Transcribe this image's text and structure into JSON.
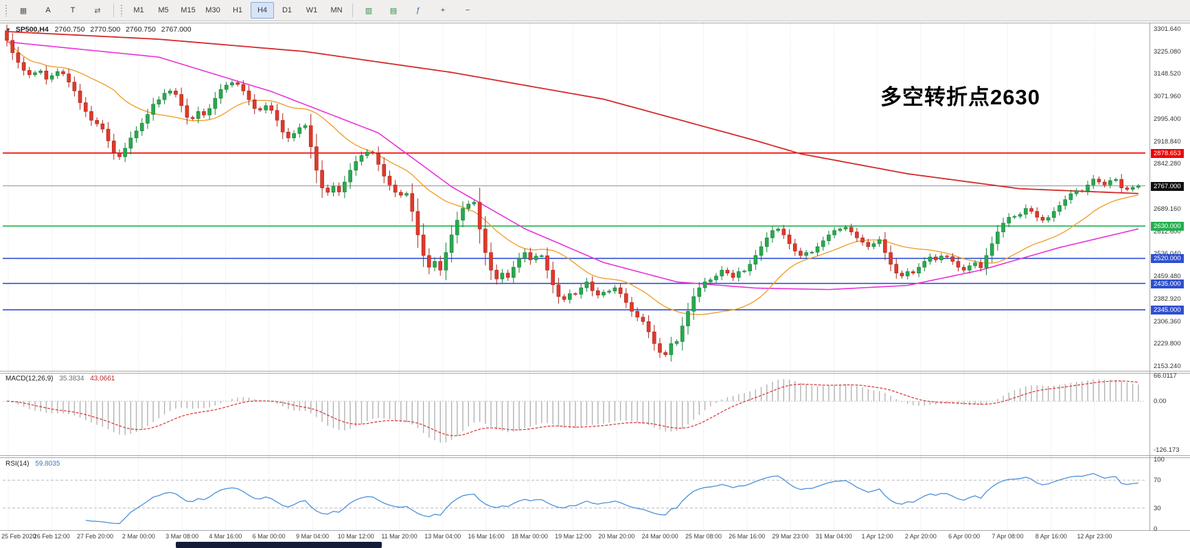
{
  "toolbar": {
    "left_icons": [
      {
        "name": "chart-window-icon",
        "glyph": "▦",
        "color": "#5a5a5a"
      },
      {
        "name": "text-label-icon",
        "glyph": "A",
        "color": "#2f2f2f"
      },
      {
        "name": "text-tool-icon",
        "glyph": "T",
        "color": "#2f2f2f"
      },
      {
        "name": "scroll-chart-icon",
        "glyph": "⇄",
        "color": "#5a5a5a"
      }
    ],
    "timeframes": [
      "M1",
      "M5",
      "M15",
      "M30",
      "H1",
      "H4",
      "D1",
      "W1",
      "MN"
    ],
    "active_timeframe": "H4",
    "right_icons": [
      {
        "name": "tile-windows-icon",
        "glyph": "▥",
        "color": "#2e8b44"
      },
      {
        "name": "cascade-windows-icon",
        "glyph": "▤",
        "color": "#2e8b44"
      },
      {
        "name": "indicators-icon",
        "glyph": "ƒ",
        "color": "#2a62b8"
      },
      {
        "name": "zoom-in-icon",
        "glyph": "+",
        "color": "#444444"
      },
      {
        "name": "zoom-out-icon",
        "glyph": "−",
        "color": "#444444"
      }
    ]
  },
  "chart_data": {
    "type": "candlestick",
    "symbol_title": {
      "dropdown_glyph": "▼",
      "symbol_period": "SP500,H4",
      "open": "2760.750",
      "high": "2770.500",
      "low": "2760.750",
      "close": "2767.000"
    },
    "annotation": {
      "text": "多空转折点2630",
      "color": "#ff0000"
    },
    "y_range": {
      "max": 3320,
      "min": 2142
    },
    "y_ticks": [
      "3301.640",
      "3225.080",
      "3148.520",
      "3071.960",
      "2995.400",
      "2918.840",
      "2842.280",
      "2765.720",
      "2689.160",
      "2612.600",
      "2536.040",
      "2459.480",
      "2382.920",
      "2306.360",
      "2229.800",
      "2153.240"
    ],
    "x_labels": [
      "25 Feb 2020",
      "26 Feb 12:00",
      "27 Feb 20:00",
      "2 Mar 00:00",
      "3 Mar 08:00",
      "4 Mar 16:00",
      "6 Mar 00:00",
      "9 Mar 04:00",
      "10 Mar 12:00",
      "11 Mar 20:00",
      "13 Mar 04:00",
      "16 Mar 16:00",
      "18 Mar 00:00",
      "19 Mar 12:00",
      "20 Mar 20:00",
      "24 Mar 00:00",
      "25 Mar 08:00",
      "26 Mar 16:00",
      "29 Mar 23:00",
      "31 Mar 04:00",
      "1 Apr 12:00",
      "2 Apr 20:00",
      "6 Apr 00:00",
      "7 Apr 08:00",
      "8 Apr 16:00",
      "12 Apr 23:00"
    ],
    "open_seed": 3295,
    "closes": [
      3262,
      3220,
      3187,
      3160,
      3145,
      3152,
      3158,
      3130,
      3142,
      3156,
      3148,
      3120,
      3090,
      3050,
      3020,
      2990,
      2978,
      2960,
      2920,
      2880,
      2866,
      2895,
      2930,
      2954,
      2980,
      3010,
      3045,
      3060,
      3082,
      3090,
      3078,
      3040,
      3000,
      2996,
      3020,
      3008,
      3030,
      3065,
      3095,
      3110,
      3118,
      3112,
      3090,
      3060,
      3030,
      3025,
      3040,
      3024,
      2990,
      2950,
      2930,
      2945,
      2965,
      2972,
      2900,
      2820,
      2760,
      2745,
      2765,
      2746,
      2780,
      2820,
      2850,
      2870,
      2882,
      2878,
      2840,
      2800,
      2770,
      2745,
      2735,
      2741,
      2680,
      2600,
      2530,
      2490,
      2510,
      2480,
      2540,
      2600,
      2650,
      2690,
      2705,
      2711,
      2620,
      2540,
      2480,
      2450,
      2470,
      2455,
      2490,
      2520,
      2540,
      2515,
      2528,
      2529,
      2480,
      2430,
      2390,
      2380,
      2400,
      2398,
      2420,
      2440,
      2410,
      2395,
      2405,
      2409,
      2420,
      2400,
      2370,
      2340,
      2320,
      2305,
      2270,
      2230,
      2200,
      2192,
      2230,
      2237,
      2290,
      2340,
      2390,
      2420,
      2440,
      2447,
      2460,
      2480,
      2470,
      2455,
      2475,
      2477,
      2500,
      2530,
      2560,
      2590,
      2615,
      2620,
      2600,
      2570,
      2545,
      2530,
      2540,
      2541,
      2560,
      2580,
      2600,
      2615,
      2620,
      2626,
      2610,
      2590,
      2575,
      2560,
      2570,
      2584,
      2540,
      2500,
      2470,
      2460,
      2475,
      2470,
      2490,
      2510,
      2525,
      2515,
      2528,
      2526,
      2510,
      2490,
      2480,
      2495,
      2505,
      2488,
      2530,
      2570,
      2610,
      2640,
      2660,
      2663,
      2670,
      2690,
      2680,
      2660,
      2650,
      2659,
      2680,
      2700,
      2720,
      2740,
      2750,
      2749,
      2770,
      2790,
      2780,
      2770,
      2785,
      2789,
      2760,
      2755,
      2762,
      2767
    ],
    "ma": {
      "fast_period": 20,
      "mid_anchors": [
        [
          0,
          3257
        ],
        [
          27,
          3205
        ],
        [
          47,
          3088
        ],
        [
          66,
          2947
        ],
        [
          79,
          2764
        ],
        [
          92,
          2621
        ],
        [
          106,
          2506
        ],
        [
          119,
          2440
        ],
        [
          133,
          2419
        ],
        [
          146,
          2414
        ],
        [
          160,
          2428
        ],
        [
          173,
          2480
        ],
        [
          187,
          2557
        ],
        [
          202,
          2625
        ]
      ],
      "slow_anchors": [
        [
          0,
          3292
        ],
        [
          27,
          3266
        ],
        [
          53,
          3224
        ],
        [
          79,
          3153
        ],
        [
          106,
          3062
        ],
        [
          133,
          2921
        ],
        [
          141,
          2876
        ],
        [
          160,
          2808
        ],
        [
          180,
          2757
        ],
        [
          202,
          2740
        ]
      ]
    },
    "hlines": [
      {
        "label": "2878.653",
        "value": 2878.653,
        "color": "#f00000"
      },
      {
        "label": "2630.000",
        "value": 2630,
        "color": "#22b14c"
      },
      {
        "label": "2520.000",
        "value": 2520,
        "color": "#2e4fd0"
      },
      {
        "label": "2435.000",
        "value": 2435,
        "color": "#2e4fd0"
      },
      {
        "label": "2345.000",
        "value": 2345,
        "color": "#2e4fd0"
      }
    ],
    "current_price": {
      "label": "2767.000",
      "value": 2767,
      "tag_bg": "#0f0f0f",
      "line_color": "#8f8f8f"
    },
    "indicators": {
      "macd": {
        "name": "MACD(12,26,9)",
        "main_value": "35.3834",
        "signal_value": "43.0661",
        "fast": 12,
        "slow": 26,
        "signal": 9,
        "range": {
          "max": 70,
          "min": -135
        },
        "ticks": [
          {
            "label": "66.0117",
            "value": 66.0117
          },
          {
            "label": "0.00",
            "value": 0
          },
          {
            "label": "-126.173",
            "value": -126.173
          }
        ]
      },
      "rsi": {
        "name": "RSI(14)",
        "value": "59.8035",
        "period": 14,
        "levels": [
          70,
          30
        ],
        "ticks": [
          {
            "label": "100",
            "value": 100
          },
          {
            "label": "70",
            "value": 70
          },
          {
            "label": "30",
            "value": 30
          },
          {
            "label": "0",
            "value": 0
          }
        ]
      }
    }
  },
  "colors": {
    "bull_fill": "#2aa84f",
    "bull_stroke": "#15803a",
    "bear_fill": "#e0392b",
    "bear_stroke": "#a8261d",
    "ma_fast": "#f0a030",
    "ma_mid": "#e832d8",
    "ma_slow": "#d42a2a",
    "macd_hist": "#b2b2b2",
    "macd_signal": "#d93030",
    "rsi_line": "#4a90d9",
    "grid": "#dcdcdc",
    "frame": "#a6a6a6"
  }
}
